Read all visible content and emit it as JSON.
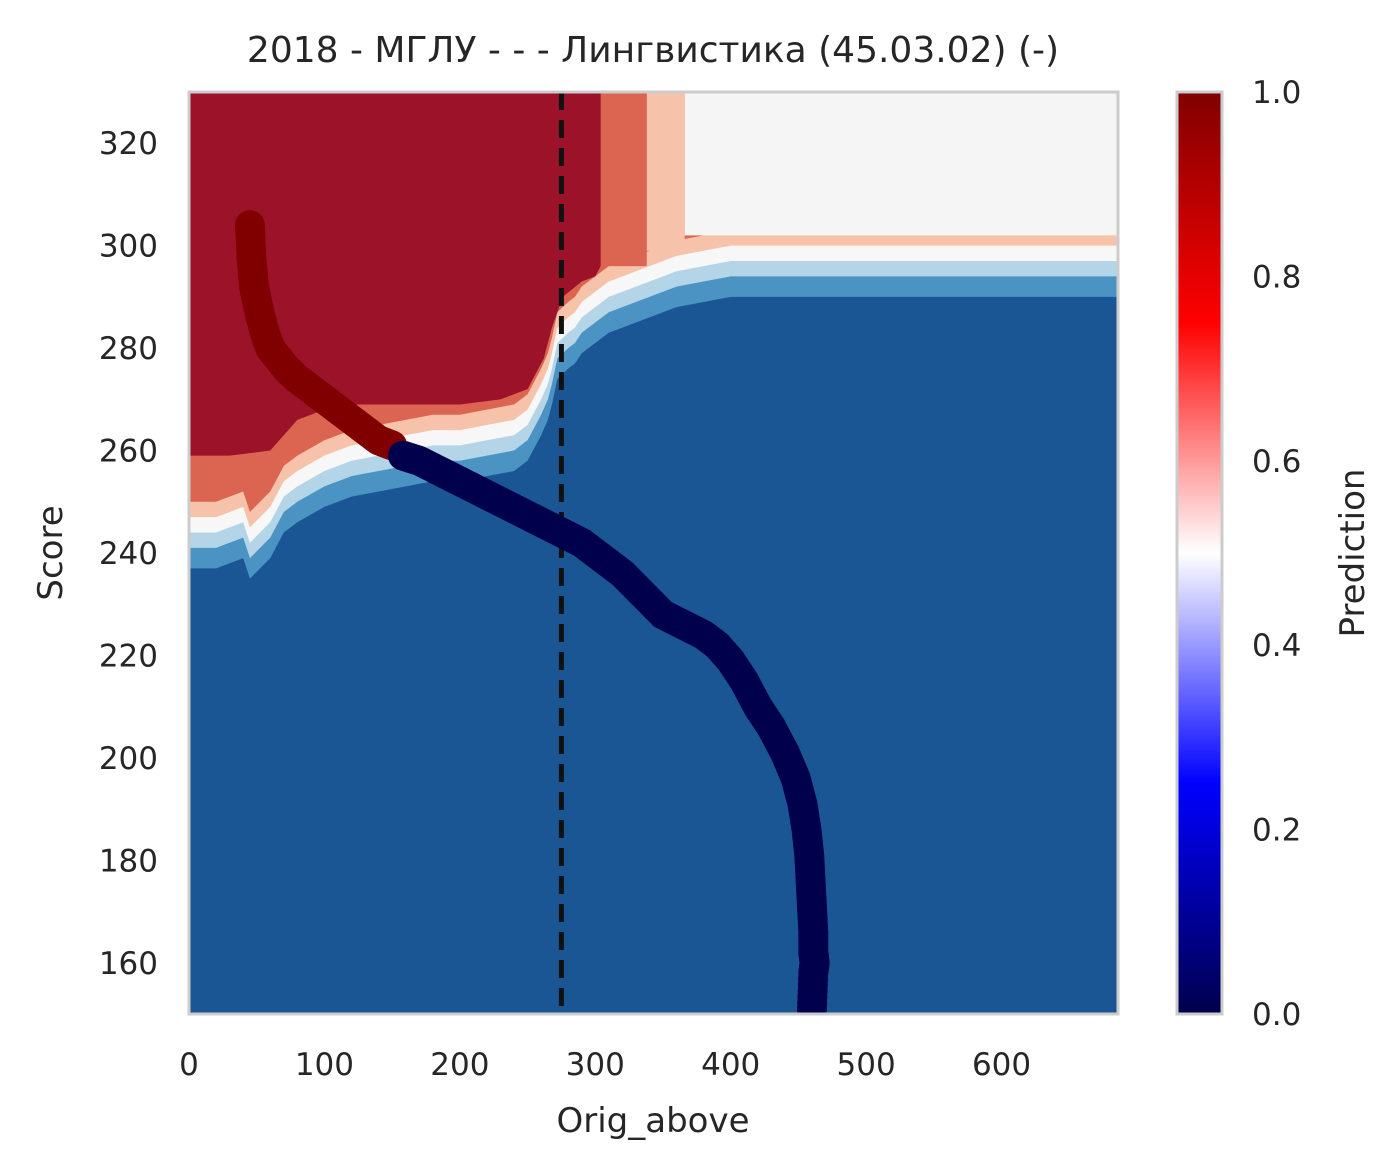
{
  "chart_data": {
    "type": "heatmap",
    "title": "2018 - МГЛУ - - - Лингвистика (45.03.02) (-)",
    "xlabel": "Orig_above",
    "ylabel": "Score",
    "xlim": [
      0,
      686
    ],
    "ylim": [
      150,
      330
    ],
    "xticks": [
      "0",
      "100",
      "200",
      "300",
      "400",
      "500",
      "600"
    ],
    "yticks": [
      "160",
      "180",
      "200",
      "220",
      "240",
      "260",
      "280",
      "300",
      "320"
    ],
    "grid": false,
    "threshold_x": 275,
    "colorbar": {
      "label": "Prediction",
      "range": [
        0,
        1
      ],
      "ticks": [
        "0.0",
        "0.2",
        "0.4",
        "0.6",
        "0.8",
        "1.0"
      ]
    },
    "decision_contours": {
      "levels": [
        0,
        0.125,
        0.25,
        0.375,
        0.5,
        0.625,
        0.75,
        0.875,
        1
      ],
      "boundary_x": [
        0,
        20,
        40,
        45,
        60,
        70,
        80,
        100,
        120,
        140,
        160,
        180,
        200,
        220,
        240,
        250,
        260,
        265,
        268,
        272,
        276,
        280,
        285,
        290,
        300,
        310,
        320,
        330,
        340,
        350,
        360,
        380,
        400,
        450,
        500,
        600,
        686
      ],
      "boundary_score": [
        250,
        250,
        252,
        248,
        252,
        257,
        259,
        262,
        264,
        265,
        266,
        267,
        267,
        268,
        269,
        271,
        276,
        279,
        282,
        287,
        288,
        289,
        290,
        292,
        294,
        296,
        297,
        298,
        299,
        300,
        301,
        302,
        303,
        303,
        303,
        303,
        303
      ]
    },
    "series": [
      {
        "x": [
          45,
          46,
          48,
          52,
          56,
          60,
          66,
          72,
          80,
          90,
          100,
          110,
          120,
          130,
          140,
          150,
          158,
          170,
          185,
          200,
          215,
          230,
          245,
          260,
          275,
          290,
          305,
          320,
          335,
          350,
          365,
          380,
          390,
          400,
          410,
          420,
          430,
          440,
          448,
          453,
          456,
          458,
          459,
          460,
          461,
          461,
          462,
          461,
          460
        ],
        "score": [
          304,
          298,
          292,
          287,
          283,
          280,
          278,
          276,
          274,
          272,
          270,
          268,
          266,
          264,
          262,
          261,
          259,
          258,
          256,
          254,
          252,
          250,
          248,
          246,
          244,
          242,
          239,
          236,
          232,
          228,
          226,
          224,
          222,
          219,
          215,
          210,
          206,
          201,
          196,
          191,
          186,
          181,
          176,
          171,
          166,
          162,
          160,
          158,
          151
        ],
        "prediction": [
          1,
          1,
          1,
          1,
          1,
          1,
          1,
          1,
          1,
          1,
          1,
          1,
          1,
          1,
          1,
          1,
          0,
          0,
          0,
          0,
          0,
          0,
          0,
          0,
          0,
          0,
          0,
          0,
          0,
          0,
          0,
          0,
          0,
          0,
          0,
          0,
          0,
          0,
          0,
          0,
          0,
          0,
          0,
          0,
          0,
          0,
          0,
          0,
          0
        ]
      }
    ],
    "colors": {
      "high": "#9b1229",
      "low": "#1b5694",
      "empty": "#f5f5f5",
      "point_high": "#800000",
      "point_low": "#00004c",
      "threshold_line": "#111111",
      "frame": "#cccccc"
    }
  }
}
